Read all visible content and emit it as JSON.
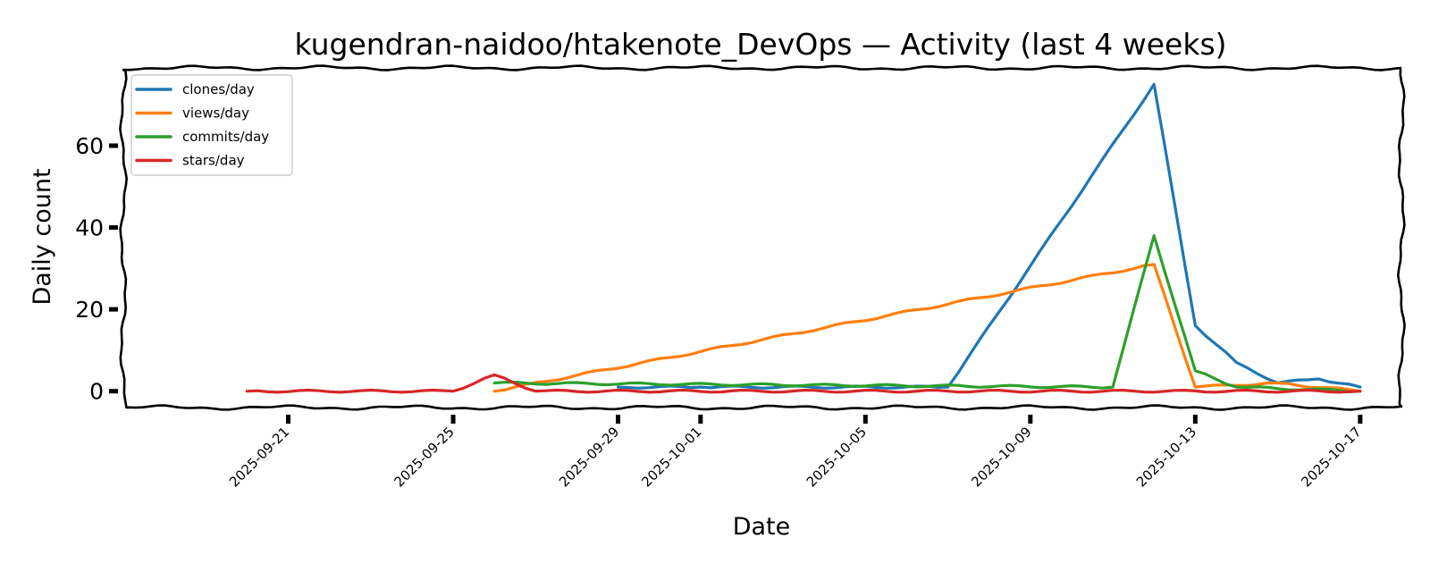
{
  "chart_data": {
    "type": "line",
    "title": "kugendran-naidoo/htakenote_DevOps — Activity (last 4 weeks)",
    "xlabel": "Date",
    "ylabel": "Daily count",
    "xlim": [
      "2025-09-17",
      "2025-10-18"
    ],
    "ylim": [
      -4,
      79
    ],
    "yticks": [
      0,
      20,
      40,
      60
    ],
    "xticks": [
      "2025-09-21",
      "2025-09-25",
      "2025-09-29",
      "2025-10-01",
      "2025-10-05",
      "2025-10-09",
      "2025-10-13",
      "2025-10-17"
    ],
    "legend_position": "top-left",
    "grid": false,
    "series": [
      {
        "name": "clones/day",
        "color": "#1f77b4",
        "points": [
          [
            "2025-09-29",
            1
          ],
          [
            "2025-10-01",
            1
          ],
          [
            "2025-10-07",
            1
          ],
          [
            "2025-10-12",
            75
          ],
          [
            "2025-10-13",
            16
          ],
          [
            "2025-10-14",
            7
          ],
          [
            "2025-10-15",
            2
          ],
          [
            "2025-10-16",
            3
          ],
          [
            "2025-10-17",
            1
          ]
        ]
      },
      {
        "name": "views/day",
        "color": "#ff7f0e",
        "points": [
          [
            "2025-09-26",
            0
          ],
          [
            "2025-10-12",
            31
          ],
          [
            "2025-10-13",
            1
          ],
          [
            "2025-10-15",
            2
          ],
          [
            "2025-10-17",
            0
          ]
        ]
      },
      {
        "name": "commits/day",
        "color": "#2ca02c",
        "points": [
          [
            "2025-09-26",
            2
          ],
          [
            "2025-10-11",
            1
          ],
          [
            "2025-10-12",
            38
          ],
          [
            "2025-10-13",
            5
          ],
          [
            "2025-10-14",
            1
          ],
          [
            "2025-10-17",
            0
          ]
        ]
      },
      {
        "name": "stars/day",
        "color": "#d62728",
        "points": [
          [
            "2025-09-20",
            0
          ],
          [
            "2025-09-25",
            0
          ],
          [
            "2025-09-26",
            4
          ],
          [
            "2025-09-27",
            0
          ],
          [
            "2025-10-17",
            0
          ]
        ]
      }
    ]
  }
}
